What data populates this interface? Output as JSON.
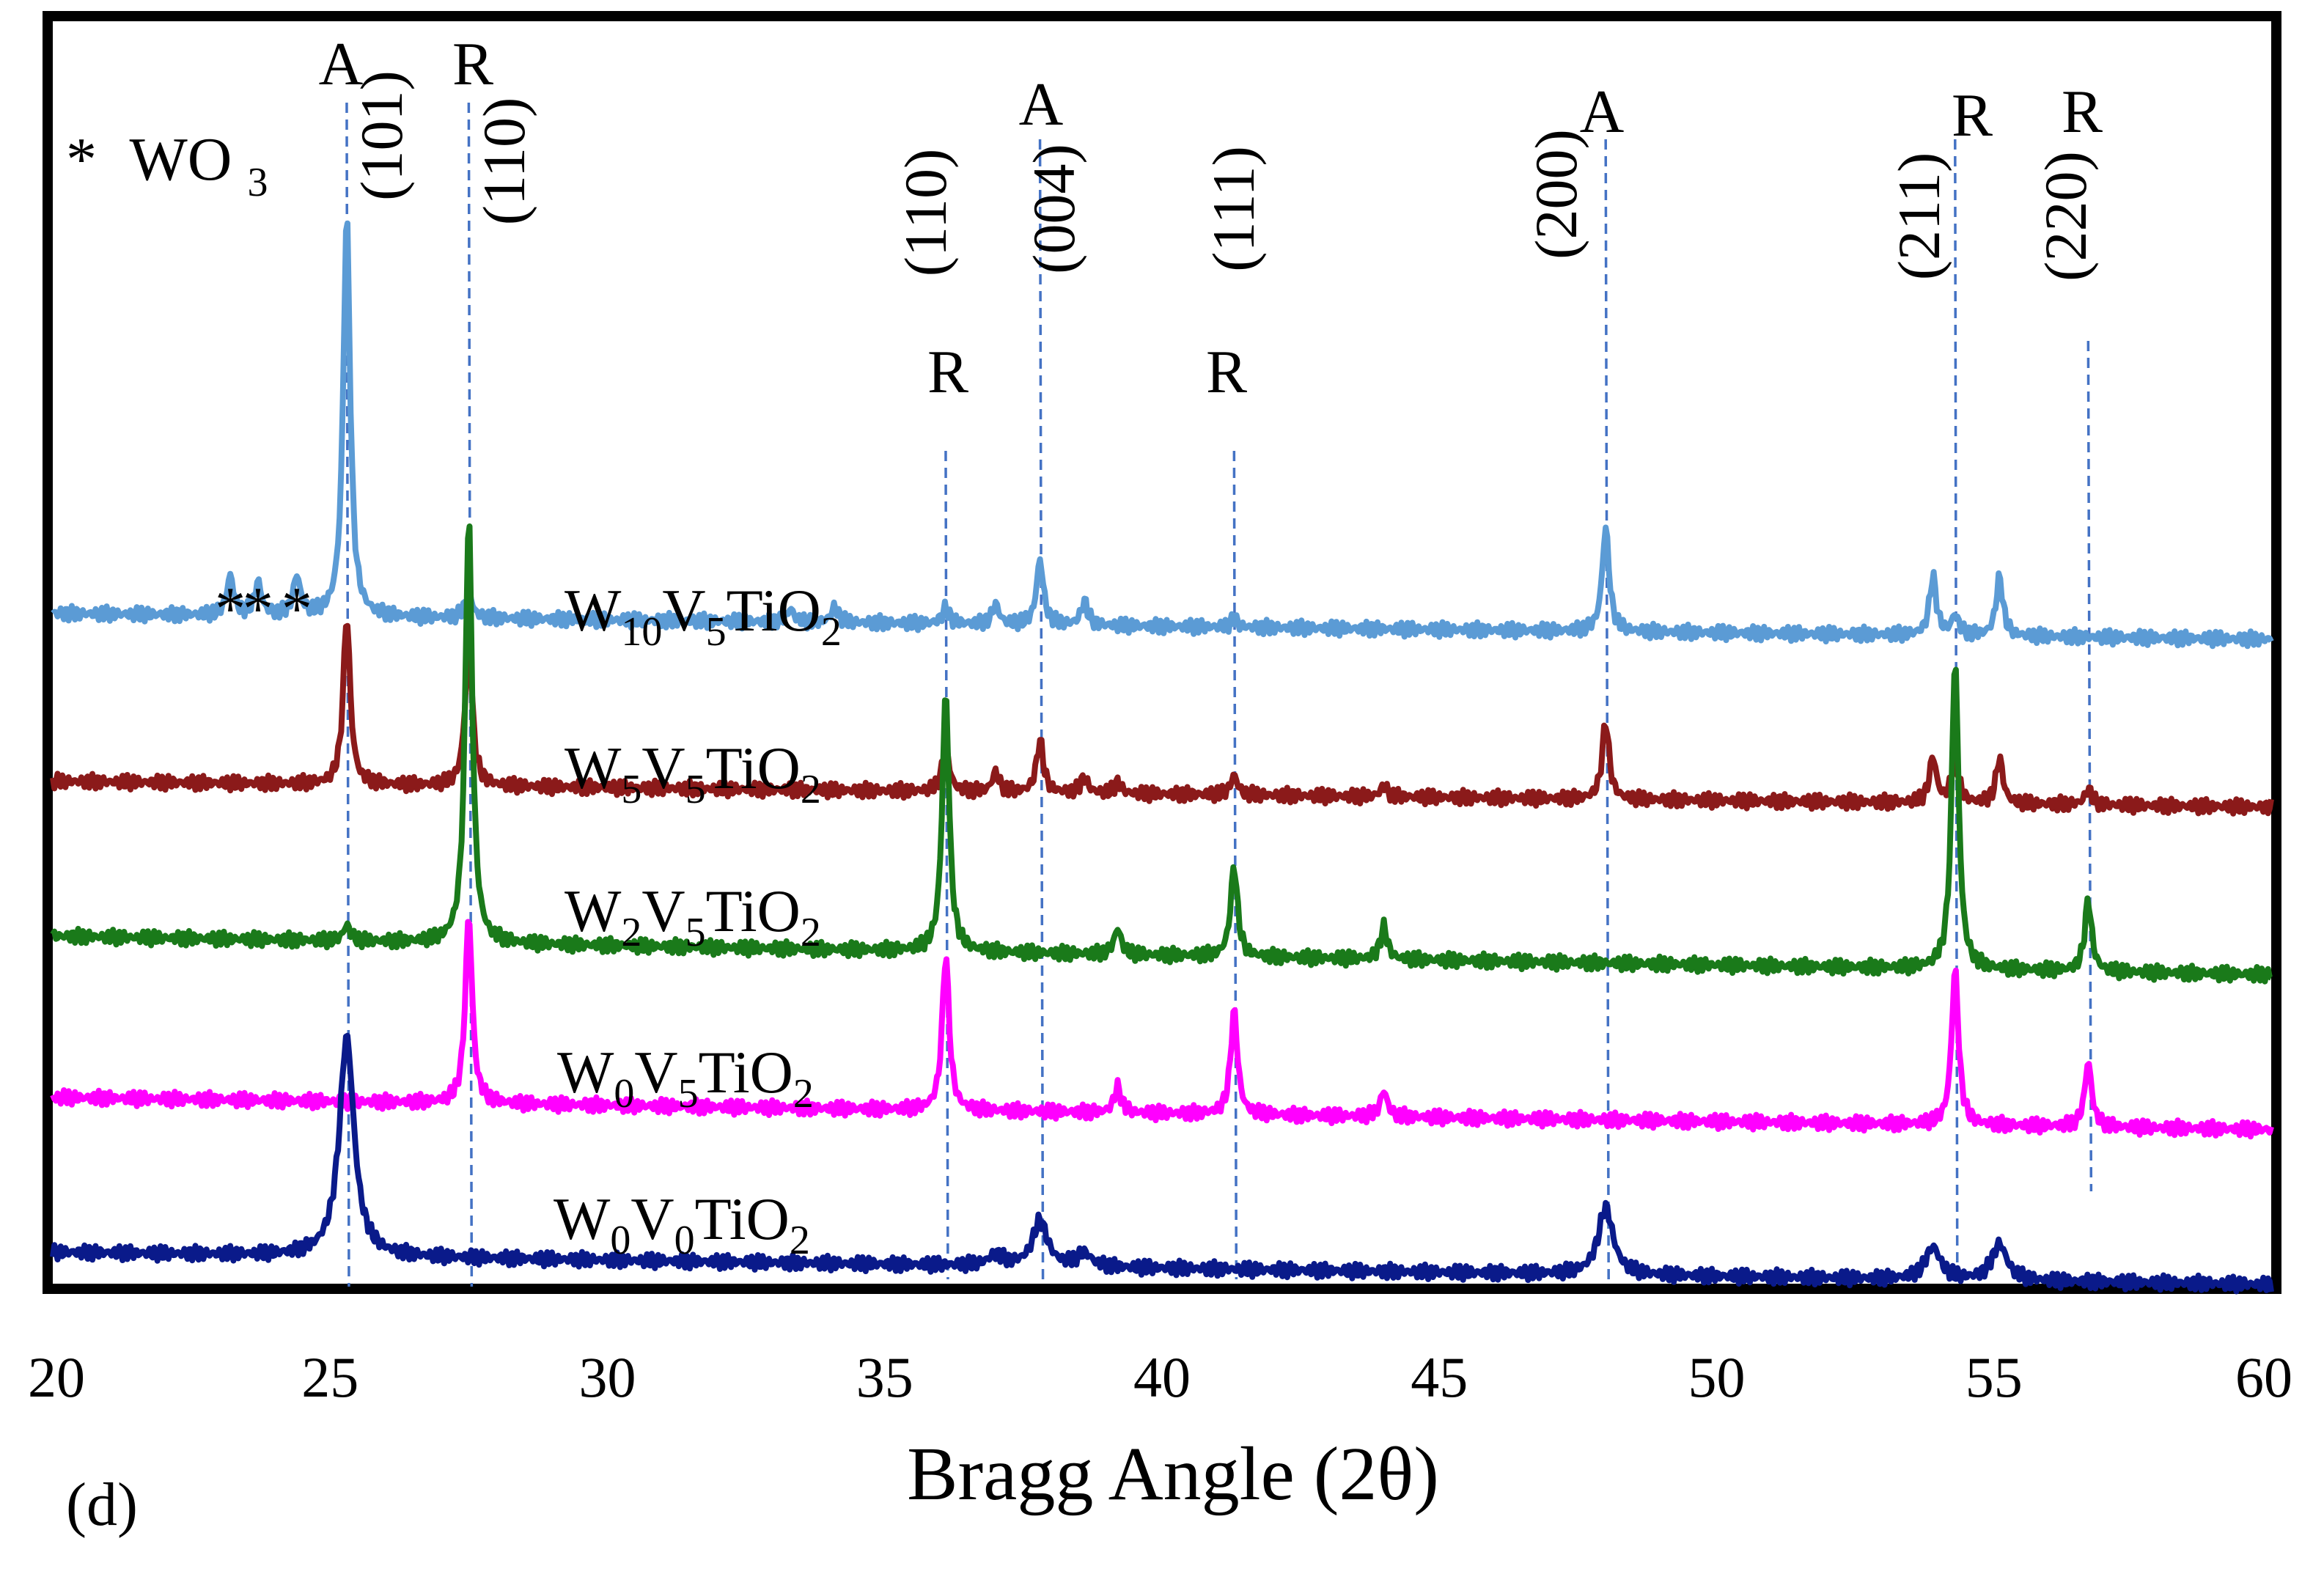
{
  "chart_data": {
    "type": "line",
    "title": "",
    "xlabel": "Bragg Angle (2θ)",
    "ylabel": "",
    "xlim": [
      20,
      60
    ],
    "x_ticks": [
      "20",
      "25",
      "30",
      "35",
      "40",
      "45",
      "50",
      "55",
      "60"
    ],
    "panel_label": "(d)",
    "legend_note": {
      "marker": "*",
      "text": "WO",
      "subscript": "3"
    },
    "wo3_peaks": [
      23.2,
      23.7,
      24.4
    ],
    "wo3_marker": "*",
    "reference_lines": [
      {
        "phase": "A",
        "hkl": "(101)",
        "x": 25.3
      },
      {
        "phase": "R",
        "hkl": "(110)",
        "x": 27.5
      },
      {
        "phase": "R",
        "hkl": "(110)",
        "x": 36.1
      },
      {
        "phase": "A",
        "hkl": "(004)",
        "x": 37.8
      },
      {
        "phase": "R",
        "hkl": "(111)",
        "x": 41.3
      },
      {
        "phase": "A",
        "hkl": "(200)",
        "x": 48.0
      },
      {
        "phase": "R",
        "hkl": "(211)",
        "x": 54.3
      },
      {
        "phase": "R",
        "hkl": "(220)",
        "x": 56.7
      }
    ],
    "series": [
      {
        "name": "W10V5TiO2",
        "label_parts": [
          [
            "W",
            ""
          ],
          [
            "10",
            "sub"
          ],
          [
            "V",
            ""
          ],
          [
            "5",
            "sub"
          ],
          [
            "TiO",
            ""
          ],
          [
            "2",
            "sub"
          ]
        ],
        "color": "#5b9bd5",
        "baseline": 0.52,
        "baseline_end": 0.5,
        "peaks": [
          [
            23.2,
            0.03
          ],
          [
            23.7,
            0.025
          ],
          [
            24.4,
            0.03
          ],
          [
            25.3,
            0.31
          ],
          [
            27.5,
            0.02
          ],
          [
            33.3,
            0.01
          ],
          [
            34.1,
            0.012
          ],
          [
            36.1,
            0.012
          ],
          [
            37.0,
            0.015
          ],
          [
            37.8,
            0.05
          ],
          [
            38.6,
            0.018
          ],
          [
            41.3,
            0.006
          ],
          [
            48.0,
            0.08
          ],
          [
            53.9,
            0.045
          ],
          [
            54.3,
            0.015
          ],
          [
            55.1,
            0.045
          ]
        ]
      },
      {
        "name": "W5V5TiO2",
        "label_parts": [
          [
            "W",
            ""
          ],
          [
            "5",
            "sub"
          ],
          [
            "V",
            ""
          ],
          [
            "5",
            "sub"
          ],
          [
            "TiO",
            ""
          ],
          [
            "2",
            "sub"
          ]
        ],
        "color": "#8b1a1a",
        "baseline": 0.39,
        "baseline_end": 0.37,
        "peaks": [
          [
            25.3,
            0.13
          ],
          [
            27.5,
            0.115
          ],
          [
            36.1,
            0.035
          ],
          [
            37.0,
            0.015
          ],
          [
            37.8,
            0.04
          ],
          [
            38.6,
            0.012
          ],
          [
            39.2,
            0.008
          ],
          [
            41.3,
            0.015
          ],
          [
            44.0,
            0.008
          ],
          [
            48.0,
            0.06
          ],
          [
            53.9,
            0.035
          ],
          [
            54.3,
            0.035
          ],
          [
            55.1,
            0.035
          ],
          [
            56.7,
            0.012
          ]
        ]
      },
      {
        "name": "W2V5TiO2",
        "label_parts": [
          [
            "W",
            ""
          ],
          [
            "2",
            "sub"
          ],
          [
            "V",
            ""
          ],
          [
            "5",
            "sub"
          ],
          [
            "TiO",
            ""
          ],
          [
            "2",
            "sub"
          ]
        ],
        "color": "#1a7a1a",
        "baseline": 0.27,
        "baseline_end": 0.24,
        "peaks": [
          [
            25.3,
            0.012
          ],
          [
            27.5,
            0.33
          ],
          [
            36.1,
            0.2
          ],
          [
            39.2,
            0.02
          ],
          [
            41.3,
            0.07
          ],
          [
            44.0,
            0.025
          ],
          [
            54.3,
            0.24
          ],
          [
            56.7,
            0.055
          ]
        ]
      },
      {
        "name": "W0V5TiO2",
        "label_parts": [
          [
            "W",
            ""
          ],
          [
            "0",
            "sub"
          ],
          [
            "V",
            ""
          ],
          [
            "5",
            "sub"
          ],
          [
            "TiO",
            ""
          ],
          [
            "2",
            "sub"
          ]
        ],
        "color": "#ff00ff",
        "baseline": 0.145,
        "baseline_end": 0.12,
        "peaks": [
          [
            27.5,
            0.145
          ],
          [
            36.1,
            0.12
          ],
          [
            39.2,
            0.02
          ],
          [
            41.3,
            0.08
          ],
          [
            44.0,
            0.02
          ],
          [
            54.3,
            0.12
          ],
          [
            56.7,
            0.05
          ]
        ]
      },
      {
        "name": "W0V0TiO2",
        "label_parts": [
          [
            "W",
            ""
          ],
          [
            "0",
            "sub"
          ],
          [
            "V",
            ""
          ],
          [
            "0",
            "sub"
          ],
          [
            "TiO",
            ""
          ],
          [
            "2",
            "sub"
          ]
        ],
        "color": "#0a1a8a",
        "baseline": 0.025,
        "baseline_end": 0.0,
        "peaks": [
          [
            25.3,
            0.17
          ],
          [
            37.0,
            0.008
          ],
          [
            37.8,
            0.035
          ],
          [
            38.6,
            0.01
          ],
          [
            48.0,
            0.052
          ],
          [
            53.9,
            0.025
          ],
          [
            55.1,
            0.028
          ]
        ]
      }
    ]
  }
}
